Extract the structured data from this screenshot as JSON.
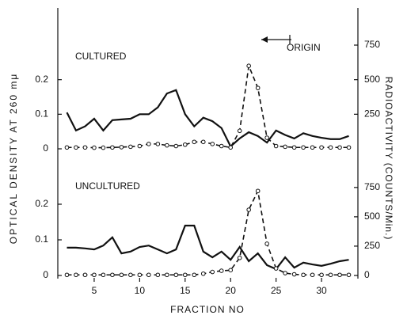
{
  "chart_data": [
    {
      "type": "line",
      "title": "CULTURED",
      "annotation": "ORIGIN",
      "y_label": "OPTICAL DENSITY AT 260 mμ",
      "y2_label": "RADIOACTIVITY (COUNTS/Min.)",
      "xlim": [
        1,
        34
      ],
      "ylim": [
        0,
        0.3
      ],
      "yticks": [
        0,
        0.1,
        0.2
      ],
      "y2lim": [
        0,
        750
      ],
      "y2ticks": [
        250,
        500,
        750
      ],
      "x": [
        2,
        3,
        4,
        5,
        6,
        7,
        8,
        9,
        10,
        11,
        12,
        13,
        14,
        15,
        16,
        17,
        18,
        19,
        20,
        21,
        22,
        23,
        24,
        25,
        26,
        27,
        28,
        29,
        30,
        31,
        32,
        33
      ],
      "series": [
        {
          "style": "solid",
          "color": "#111",
          "values": [
            0.105,
            0.053,
            0.065,
            0.087,
            0.053,
            0.083,
            0.085,
            0.087,
            0.1,
            0.1,
            0.12,
            0.16,
            0.17,
            0.1,
            0.065,
            0.09,
            0.08,
            0.06,
            0.007,
            0.03,
            0.048,
            0.037,
            0.018,
            0.053,
            0.04,
            0.03,
            0.045,
            0.037,
            0.032,
            0.028,
            0.028,
            0.037
          ]
        },
        {
          "style": "dashed",
          "markers": true,
          "axis": "y2",
          "color": "#111",
          "values": [
            10,
            10,
            10,
            8,
            8,
            10,
            12,
            15,
            20,
            35,
            35,
            25,
            20,
            30,
            50,
            50,
            35,
            20,
            10,
            130,
            600,
            440,
            80,
            20,
            15,
            10,
            10,
            10,
            10,
            10,
            10,
            10
          ]
        }
      ]
    },
    {
      "type": "line",
      "title": "UNCULTURED",
      "x_label": "FRACTION NO",
      "xlim": [
        1,
        34
      ],
      "xticks": [
        5,
        10,
        15,
        20,
        25,
        30
      ],
      "ylim": [
        0,
        0.28
      ],
      "yticks": [
        0,
        0.1,
        0.2
      ],
      "y2lim": [
        0,
        850
      ],
      "y2ticks": [
        0,
        250,
        500,
        750
      ],
      "x": [
        2,
        3,
        4,
        5,
        6,
        7,
        8,
        9,
        10,
        11,
        12,
        13,
        14,
        15,
        16,
        17,
        18,
        19,
        20,
        21,
        22,
        23,
        24,
        25,
        26,
        27,
        28,
        29,
        30,
        31,
        32,
        33
      ],
      "series": [
        {
          "style": "solid",
          "color": "#111",
          "values": [
            0.078,
            0.078,
            0.076,
            0.073,
            0.084,
            0.107,
            0.062,
            0.067,
            0.08,
            0.084,
            0.073,
            0.062,
            0.073,
            0.14,
            0.14,
            0.067,
            0.051,
            0.067,
            0.044,
            0.08,
            0.04,
            0.062,
            0.029,
            0.018,
            0.051,
            0.022,
            0.036,
            0.031,
            0.027,
            0.033,
            0.04,
            0.044
          ]
        },
        {
          "style": "dashed",
          "markers": true,
          "axis": "y2",
          "color": "#111",
          "values": [
            5,
            5,
            5,
            5,
            5,
            5,
            5,
            5,
            5,
            5,
            5,
            5,
            5,
            5,
            5,
            15,
            30,
            40,
            45,
            150,
            560,
            720,
            270,
            60,
            20,
            10,
            5,
            5,
            5,
            5,
            5,
            5
          ]
        }
      ]
    }
  ]
}
